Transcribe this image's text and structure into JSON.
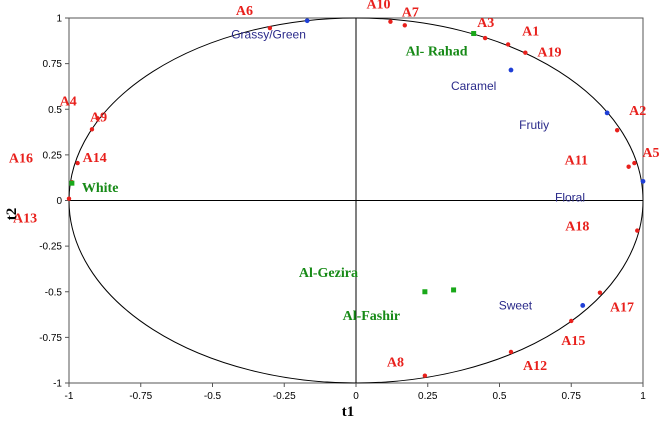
{
  "chart_data": {
    "type": "scatter",
    "title": "",
    "xlabel": "t1",
    "ylabel": "t2",
    "xlim": [
      -1,
      1
    ],
    "ylim": [
      -1,
      1
    ],
    "x_ticks": [
      "-1",
      "-0.75",
      "-0.5",
      "-0.25",
      "0",
      "0.25",
      "0.5",
      "0.75",
      "1"
    ],
    "y_ticks": [
      "1",
      "0.75",
      "0.5",
      "0.25",
      "0",
      "-0.25",
      "-0.5",
      "-0.75",
      "-1"
    ],
    "grid": false,
    "colors": {
      "samples": "#e8201c",
      "attributes": "#1f3fd6",
      "groups": "#19a819",
      "attribute_label": "#2a2a8a",
      "group_label": "#178a17"
    },
    "series": [
      {
        "points": [
          {
            "label": "A1",
            "x": 0.53,
            "y": 0.855
          },
          {
            "label": "A2",
            "x": 0.91,
            "y": 0.385
          },
          {
            "label": "A3",
            "x": 0.45,
            "y": 0.89
          },
          {
            "label": "A4",
            "x": -0.9,
            "y": 0.45
          },
          {
            "label": "A5",
            "x": 0.97,
            "y": 0.205
          },
          {
            "label": "A6",
            "x": -0.3,
            "y": 0.945
          },
          {
            "label": "A7",
            "x": 0.17,
            "y": 0.96
          },
          {
            "label": "A8",
            "x": 0.24,
            "y": -0.96
          },
          {
            "label": "A9",
            "x": -0.92,
            "y": 0.39
          },
          {
            "label": "A10",
            "x": 0.12,
            "y": 0.98
          },
          {
            "label": "A11",
            "x": 0.95,
            "y": 0.185
          },
          {
            "label": "A12",
            "x": 0.54,
            "y": -0.83
          },
          {
            "label": "A13",
            "x": -1.0,
            "y": 0.01
          },
          {
            "label": "A14",
            "x": -0.97,
            "y": 0.205
          },
          {
            "label": "A15",
            "x": 0.75,
            "y": -0.66
          },
          {
            "label": "A16",
            "x": -0.99,
            "y": 0.1
          },
          {
            "label": "A17",
            "x": 0.85,
            "y": -0.505
          },
          {
            "label": "A18",
            "x": 0.98,
            "y": -0.165
          },
          {
            "label": "A19",
            "x": 0.59,
            "y": 0.81
          }
        ]
      },
      {
        "points": [
          {
            "label": "Grassy/Green",
            "x": -0.17,
            "y": 0.985
          },
          {
            "label": "Caramel",
            "x": 0.54,
            "y": 0.715
          },
          {
            "label": "Frutiy",
            "x": 0.875,
            "y": 0.48
          },
          {
            "label": "Floral",
            "x": 1.0,
            "y": 0.105
          },
          {
            "label": "Sweet",
            "x": 0.79,
            "y": -0.575
          }
        ]
      },
      {
        "points": [
          {
            "label": "Al- Rahad",
            "x": 0.41,
            "y": 0.915
          },
          {
            "label": "White",
            "x": -0.99,
            "y": 0.095
          },
          {
            "label": "Al-Gezira",
            "x": 0.24,
            "y": -0.5
          },
          {
            "label": "Al-Fashir",
            "x": 0.34,
            "y": -0.49
          }
        ]
      }
    ]
  }
}
